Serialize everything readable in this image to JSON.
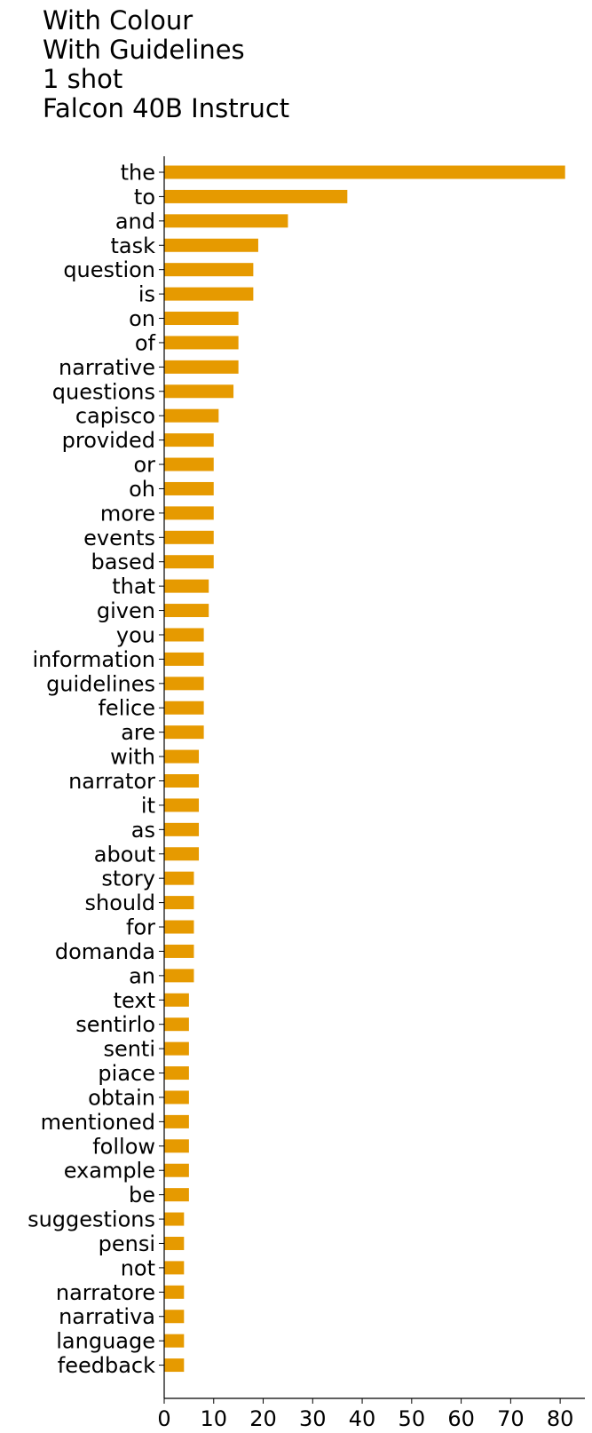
{
  "chart_data": {
    "type": "bar",
    "orientation": "horizontal",
    "title_lines": [
      "With Colour",
      "With Guidelines",
      "1 shot",
      "Falcon 40B Instruct"
    ],
    "xlabel": "",
    "ylabel": "",
    "xlim": [
      0,
      85
    ],
    "xticks": [
      0,
      10,
      20,
      30,
      40,
      50,
      60,
      70,
      80
    ],
    "grid": false,
    "bar_color": "#E69A00",
    "categories": [
      "the",
      "to",
      "and",
      "task",
      "question",
      "is",
      "on",
      "of",
      "narrative",
      "questions",
      "capisco",
      "provided",
      "or",
      "oh",
      "more",
      "events",
      "based",
      "that",
      "given",
      "you",
      "information",
      "guidelines",
      "felice",
      "are",
      "with",
      "narrator",
      "it",
      "as",
      "about",
      "story",
      "should",
      "for",
      "domanda",
      "an",
      "text",
      "sentirlo",
      "senti",
      "piace",
      "obtain",
      "mentioned",
      "follow",
      "example",
      "be",
      "suggestions",
      "pensi",
      "not",
      "narratore",
      "narrativa",
      "language",
      "feedback"
    ],
    "values": [
      81,
      37,
      25,
      19,
      18,
      18,
      15,
      15,
      15,
      14,
      11,
      10,
      10,
      10,
      10,
      10,
      10,
      9,
      9,
      8,
      8,
      8,
      8,
      8,
      7,
      7,
      7,
      7,
      7,
      6,
      6,
      6,
      6,
      6,
      5,
      5,
      5,
      5,
      5,
      5,
      5,
      5,
      5,
      4,
      4,
      4,
      4,
      4,
      4,
      4
    ]
  }
}
